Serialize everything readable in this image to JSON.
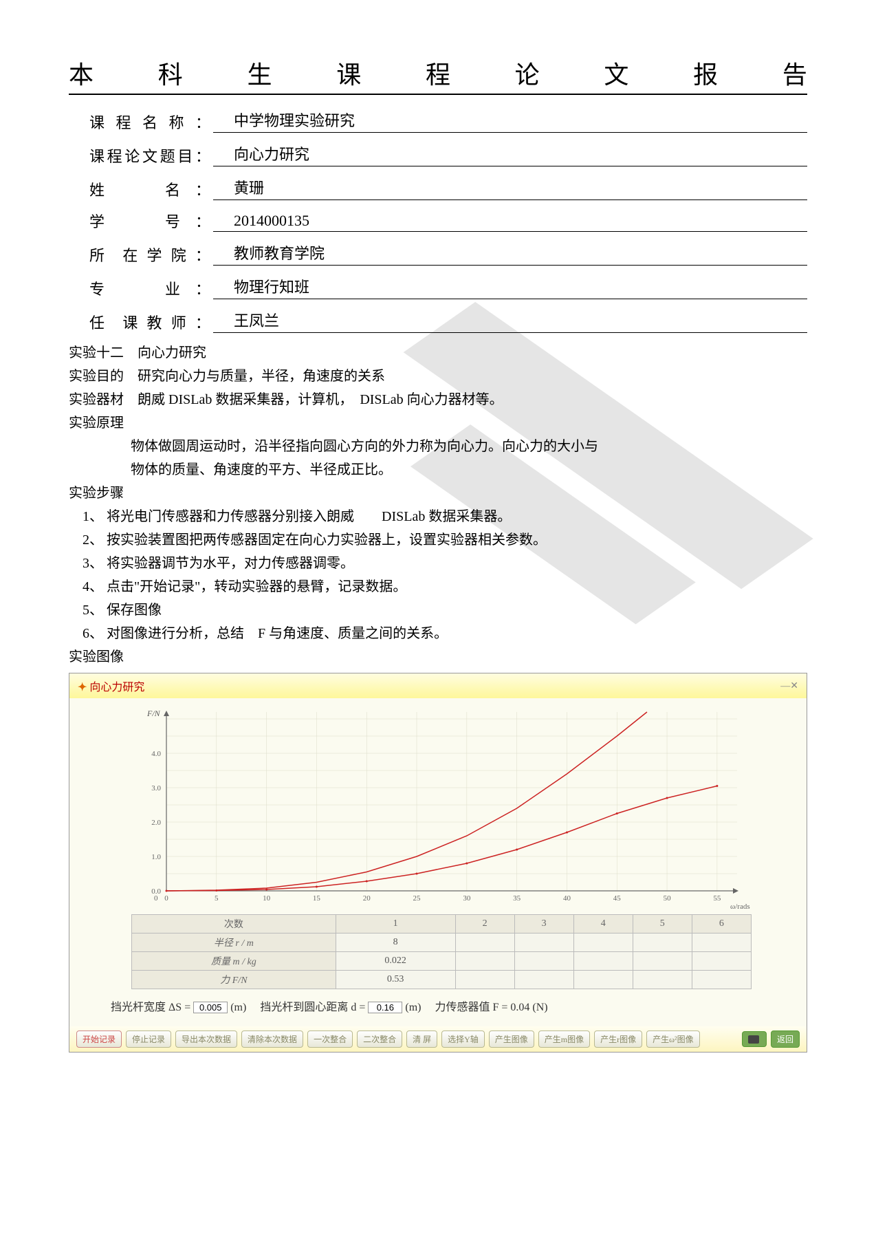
{
  "title_chars": [
    "本",
    "科",
    "生",
    "课",
    "程",
    "论",
    "文",
    "报",
    "告"
  ],
  "info": [
    {
      "label_chars": [
        "课",
        "程",
        "名",
        "称",
        "："
      ],
      "value": "中学物理实验研究"
    },
    {
      "label_chars": [
        "课",
        "程",
        "论",
        "文",
        "题",
        "目",
        "："
      ],
      "value": "向心力研究"
    },
    {
      "label_chars": [
        "姓",
        "",
        "",
        "",
        "名",
        "："
      ],
      "value": "黄珊"
    },
    {
      "label_chars": [
        "学",
        "",
        "",
        "",
        "号",
        "："
      ],
      "value": "2014000135"
    },
    {
      "label_chars": [
        "所",
        "",
        "在",
        "学",
        "院",
        "："
      ],
      "value": "教师教育学院"
    },
    {
      "label_chars": [
        "专",
        "",
        "",
        "",
        "业",
        "："
      ],
      "value": "物理行知班"
    },
    {
      "label_chars": [
        "任",
        "",
        "课",
        "教",
        "师",
        "："
      ],
      "value": "王凤兰"
    }
  ],
  "sections": {
    "exp_no": "实验十二　向心力研究",
    "purpose": "实验目的　研究向心力与质量，半径，角速度的关系",
    "equipment": "实验器材　朗威 DISLab 数据采集器，计算机，　DISLab 向心力器材等。",
    "principle_head": "实验原理",
    "principle_body1": "物体做圆周运动时，沿半径指向圆心方向的外力称为向心力。向心力的大小与",
    "principle_body2": "物体的质量、角速度的平方、半径成正比。",
    "steps_head": "实验步骤",
    "steps": [
      "1、 将光电门传感器和力传感器分别接入朗威　　DISLab 数据采集器。",
      "2、 按实验装置图把两传感器固定在向心力实验器上，设置实验器相关参数。",
      "3、 将实验器调节为水平，对力传感器调零。",
      "4、 点击\"开始记录\"，转动实验器的悬臂，记录数据。",
      "5、 保存图像",
      "6、 对图像进行分析，总结　F 与角速度、质量之间的关系。"
    ],
    "image_head": "实验图像"
  },
  "chart": {
    "title": "向心力研究",
    "ylabel": "F/N",
    "xlabel": "ω/rads",
    "xlim": [
      0,
      57
    ],
    "ylim": [
      0,
      5.2
    ],
    "xticks": [
      0,
      5,
      10,
      15,
      20,
      25,
      30,
      35,
      40,
      45,
      50,
      55
    ],
    "yticks": [
      0,
      1.0,
      2.0,
      3.0,
      4.0
    ],
    "grid_color": "#dcdcc8",
    "axis_color": "#666",
    "line_color": "#cc2222",
    "bg_color": "#fbfbf0",
    "series1": [
      [
        0,
        0
      ],
      [
        5,
        0.02
      ],
      [
        10,
        0.08
      ],
      [
        15,
        0.25
      ],
      [
        20,
        0.55
      ],
      [
        25,
        1.0
      ],
      [
        30,
        1.6
      ],
      [
        35,
        2.4
      ],
      [
        40,
        3.4
      ],
      [
        45,
        4.5
      ],
      [
        48,
        5.2
      ]
    ],
    "series2": [
      [
        0,
        0
      ],
      [
        5,
        0.01
      ],
      [
        10,
        0.04
      ],
      [
        15,
        0.12
      ],
      [
        20,
        0.28
      ],
      [
        25,
        0.5
      ],
      [
        30,
        0.8
      ],
      [
        35,
        1.2
      ],
      [
        40,
        1.7
      ],
      [
        45,
        2.25
      ],
      [
        50,
        2.7
      ],
      [
        55,
        3.05
      ]
    ]
  },
  "data_table": {
    "headers": [
      "次数",
      "1",
      "2",
      "3",
      "4",
      "5",
      "6"
    ],
    "rows": [
      {
        "label": "半径 r / m",
        "cells": [
          "8",
          "",
          "",
          "",
          "",
          ""
        ]
      },
      {
        "label": "质量 m / kg",
        "cells": [
          "0.022",
          "",
          "",
          "",
          "",
          ""
        ]
      },
      {
        "label": "力 F/N",
        "cells": [
          "0.53",
          "",
          "",
          "",
          "",
          ""
        ]
      }
    ]
  },
  "params": {
    "text1": "挡光杆宽度 ΔS =",
    "val1": "0.005",
    "unit1": "(m)",
    "text2": "挡光杆到圆心距离 d =",
    "val2": "0.16",
    "unit2": "(m)",
    "text3": "力传感器值 F =  0.04 (N)"
  },
  "buttons": [
    "开始记录",
    "停止记录",
    "导出本次数据",
    "清除本次数据",
    "一次整合",
    "二次整合",
    "清 屏",
    "选择Y轴",
    "产生图像",
    "产生m图像",
    "产生r图像",
    "产生ω²图像"
  ],
  "back_button": "返回"
}
